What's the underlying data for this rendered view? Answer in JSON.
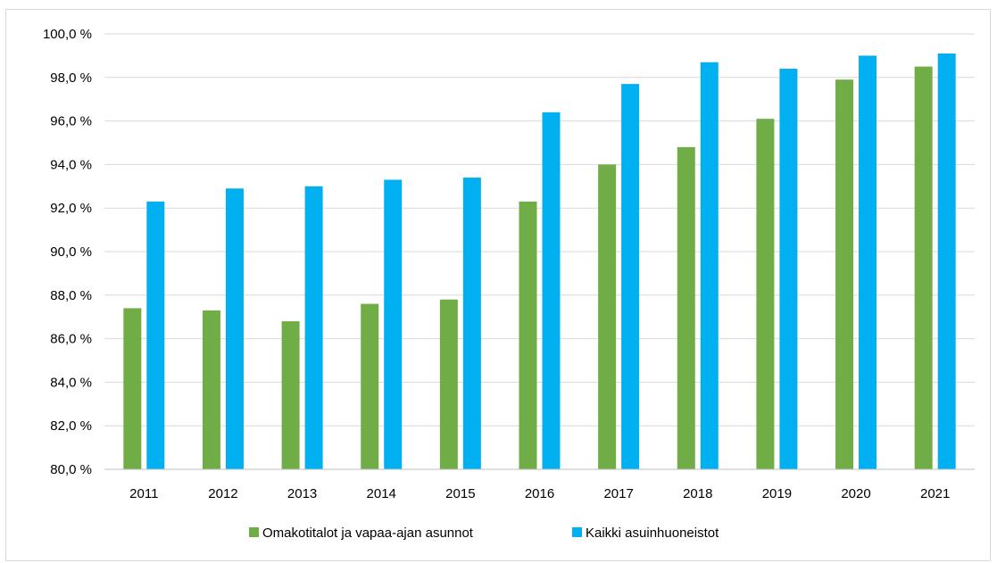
{
  "chart_data": {
    "type": "bar",
    "title": "",
    "xlabel": "",
    "ylabel": "",
    "ylim": [
      80,
      100
    ],
    "y_ticks": [
      80,
      82,
      84,
      86,
      88,
      90,
      92,
      94,
      96,
      98,
      100
    ],
    "y_tick_labels": [
      "80,0 %",
      "82,0 %",
      "84,0 %",
      "86,0 %",
      "88,0 %",
      "90,0 %",
      "92,0 %",
      "94,0 %",
      "96,0 %",
      "98,0 %",
      "100,0 %"
    ],
    "grid": true,
    "legend_position": "bottom",
    "categories": [
      "2011",
      "2012",
      "2013",
      "2014",
      "2015",
      "2016",
      "2017",
      "2018",
      "2019",
      "2020",
      "2021"
    ],
    "series": [
      {
        "name": "Omakotitalot ja vapaa-ajan asunnot",
        "color": "#70ad47",
        "values": [
          87.4,
          87.3,
          86.8,
          87.6,
          87.8,
          92.3,
          94.0,
          94.8,
          96.1,
          97.9,
          98.5
        ]
      },
      {
        "name": "Kaikki asuinhuoneistot",
        "color": "#00b0f0",
        "values": [
          92.3,
          92.9,
          93.0,
          93.3,
          93.4,
          96.4,
          97.7,
          98.7,
          98.4,
          99.0,
          99.1
        ]
      }
    ]
  }
}
